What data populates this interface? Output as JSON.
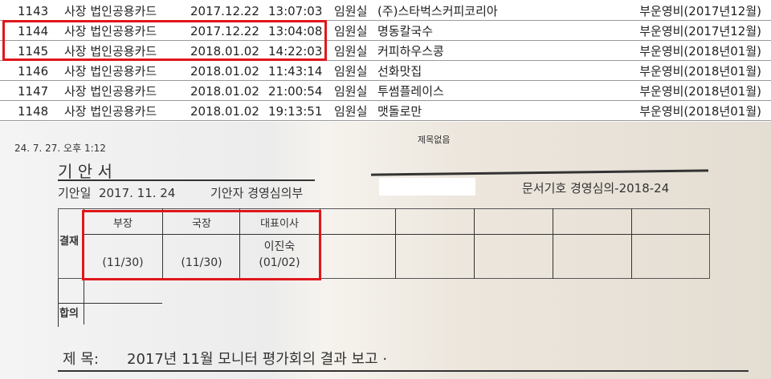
{
  "ledger": {
    "rows": [
      [
        "1143",
        "사장 법인공용카드",
        "2017.12.22",
        "13:07:03",
        "임원실",
        "(주)스타벅스커피코리아",
        "부운영비(2017년12월)"
      ],
      [
        "1144",
        "사장 법인공용카드",
        "2017.12.22",
        "13:04:08",
        "임원실",
        "명동칼국수",
        "부운영비(2017년12월)"
      ],
      [
        "1145",
        "사장 법인공용카드",
        "2018.01.02",
        "14:22:03",
        "임원실",
        "커피하우스콩",
        "부운영비(2018년01월)"
      ],
      [
        "1146",
        "사장 법인공용카드",
        "2018.01.02",
        "11:43:14",
        "임원실",
        "선화맛집",
        "부운영비(2018년01월)"
      ],
      [
        "1147",
        "사장 법인공용카드",
        "2018.01.02",
        "21:00:54",
        "임원실",
        "투썸플레이스",
        "부운영비(2018년01월)"
      ],
      [
        "1148",
        "사장 법인공용카드",
        "2018.01.02",
        "19:13:51",
        "임원실",
        "맷돌로만",
        "부운영비(2018년01월)"
      ]
    ]
  },
  "document": {
    "print_timestamp": "24. 7. 27. 오후 1:12",
    "header_title": "제목없음",
    "title": "기 안 서",
    "draft_date_label": "기안일",
    "draft_date": "2017. 11. 24",
    "drafter_label": "기안자",
    "drafter": "경영심의부",
    "doc_code_label": "문서기호",
    "doc_code": "경영심의-2018-24",
    "approval_label": "결재",
    "approvers": [
      {
        "role": "부장",
        "name": "",
        "date": "(11/30)"
      },
      {
        "role": "국장",
        "name": "",
        "date": "(11/30)"
      },
      {
        "role": "대표이사",
        "name": "이진숙",
        "date": "(01/02)"
      }
    ],
    "agreement_label": "합의",
    "subject_label": "제 목:",
    "subject": "2017년 11월 모니터 평가회의 결과 보고 ·"
  },
  "colors": {
    "highlight": "#e0161b"
  }
}
